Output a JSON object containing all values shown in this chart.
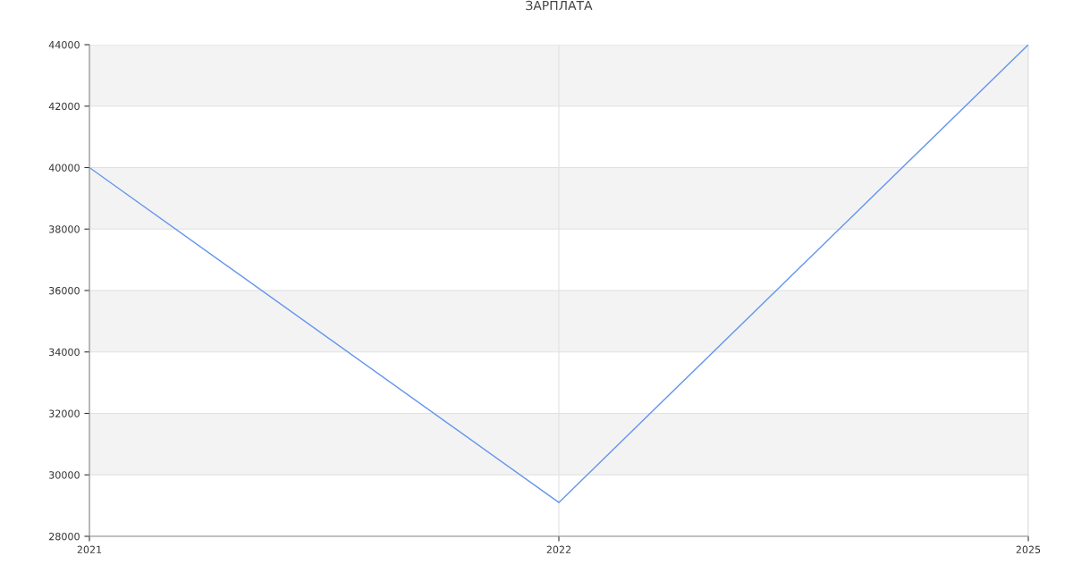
{
  "chart_data": {
    "type": "line",
    "title": "ЗАРПЛАТА",
    "categories": [
      "2021",
      "2022",
      "2025"
    ],
    "series": [
      {
        "color": "#6495ed",
        "values": [
          40000,
          29100,
          44000
        ]
      }
    ],
    "ylim": [
      28000,
      44000
    ],
    "yticks": [
      28000,
      30000,
      32000,
      34000,
      36000,
      38000,
      40000,
      42000,
      44000
    ],
    "grid": true,
    "marker": "none",
    "line_style": "solid"
  }
}
